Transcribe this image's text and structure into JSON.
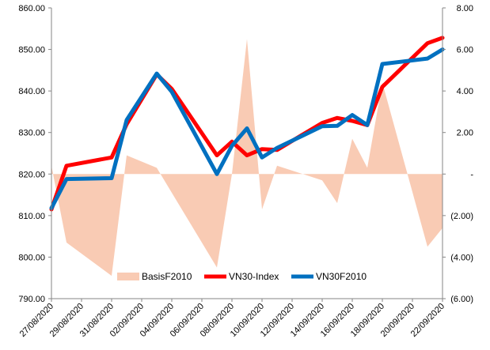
{
  "chart_data": {
    "type": "line",
    "title": "",
    "x": [
      "27/08/2020",
      "28/08/2020",
      "31/08/2020",
      "01/09/2020",
      "03/09/2020",
      "04/09/2020",
      "07/09/2020",
      "08/09/2020",
      "09/09/2020",
      "10/09/2020",
      "11/09/2020",
      "14/09/2020",
      "15/09/2020",
      "16/09/2020",
      "17/09/2020",
      "18/09/2020",
      "21/09/2020",
      "22/09/2020"
    ],
    "x_tick_labels": [
      "27/08/2020",
      "29/08/2020",
      "31/08/2020",
      "02/09/2020",
      "04/09/2020",
      "06/09/2020",
      "08/09/2020",
      "10/09/2020",
      "12/09/2020",
      "14/09/2020",
      "16/09/2020",
      "18/09/2020",
      "20/09/2020",
      "22/09/2020"
    ],
    "y_left": {
      "min": 790,
      "max": 860,
      "ticks": [
        "790.00",
        "800.00",
        "810.00",
        "820.00",
        "830.00",
        "840.00",
        "850.00",
        "860.00"
      ]
    },
    "y_right": {
      "min": -6,
      "max": 8,
      "ticks": [
        "(6.00)",
        "(4.00)",
        "(2.00)",
        "-",
        "2.00",
        "4.00",
        "6.00",
        "8.00"
      ]
    },
    "series": [
      {
        "name": "BasisF2010",
        "kind": "area",
        "axis": "right",
        "color": "#f9cbb4",
        "points": [
          [
            "27/08/2020",
            0.4
          ],
          [
            "28/08/2020",
            -3.3
          ],
          [
            "31/08/2020",
            -4.9
          ],
          [
            "01/09/2020",
            0.9
          ],
          [
            "03/09/2020",
            0.3
          ],
          [
            "07/09/2020",
            -4.5
          ],
          [
            "08/09/2020",
            0.0
          ],
          [
            "09/09/2020",
            6.5
          ],
          [
            "10/09/2020",
            -1.7
          ],
          [
            "11/09/2020",
            0.4
          ],
          [
            "14/09/2020",
            -0.3
          ],
          [
            "15/09/2020",
            -1.4
          ],
          [
            "16/09/2020",
            1.7
          ],
          [
            "17/09/2020",
            0.3
          ],
          [
            "18/09/2020",
            4.4
          ],
          [
            "21/09/2020",
            -3.5
          ],
          [
            "22/09/2020",
            -2.6
          ]
        ]
      },
      {
        "name": "VN30-Index",
        "kind": "line",
        "axis": "left",
        "color": "#ff0000",
        "points": [
          [
            "27/08/2020",
            811.5
          ],
          [
            "28/08/2020",
            822.0
          ],
          [
            "31/08/2020",
            824.0
          ],
          [
            "01/09/2020",
            832.0
          ],
          [
            "03/09/2020",
            844.0
          ],
          [
            "04/09/2020",
            840.5
          ],
          [
            "07/09/2020",
            824.5
          ],
          [
            "08/09/2020",
            827.8
          ],
          [
            "09/09/2020",
            824.5
          ],
          [
            "10/09/2020",
            826.0
          ],
          [
            "11/09/2020",
            825.8
          ],
          [
            "14/09/2020",
            832.3
          ],
          [
            "15/09/2020",
            833.5
          ],
          [
            "16/09/2020",
            832.8
          ],
          [
            "17/09/2020",
            831.8
          ],
          [
            "18/09/2020",
            841.0
          ],
          [
            "21/09/2020",
            851.5
          ],
          [
            "22/09/2020",
            852.8
          ]
        ]
      },
      {
        "name": "VN30F2010",
        "kind": "line",
        "axis": "left",
        "color": "#0070c0",
        "points": [
          [
            "27/08/2020",
            811.8
          ],
          [
            "28/08/2020",
            818.8
          ],
          [
            "31/08/2020",
            819.0
          ],
          [
            "01/09/2020",
            833.0
          ],
          [
            "03/09/2020",
            844.2
          ],
          [
            "04/09/2020",
            839.8
          ],
          [
            "07/09/2020",
            820.0
          ],
          [
            "08/09/2020",
            826.8
          ],
          [
            "09/09/2020",
            831.0
          ],
          [
            "10/09/2020",
            824.0
          ],
          [
            "11/09/2020",
            826.3
          ],
          [
            "14/09/2020",
            831.5
          ],
          [
            "15/09/2020",
            831.6
          ],
          [
            "16/09/2020",
            834.2
          ],
          [
            "17/09/2020",
            831.8
          ],
          [
            "18/09/2020",
            846.5
          ],
          [
            "21/09/2020",
            847.8
          ],
          [
            "22/09/2020",
            850.0
          ]
        ]
      }
    ],
    "legend": {
      "placement": "bottom-center",
      "items": [
        "BasisF2010",
        "VN30-Index",
        "VN30F2010"
      ]
    },
    "grid": false
  }
}
